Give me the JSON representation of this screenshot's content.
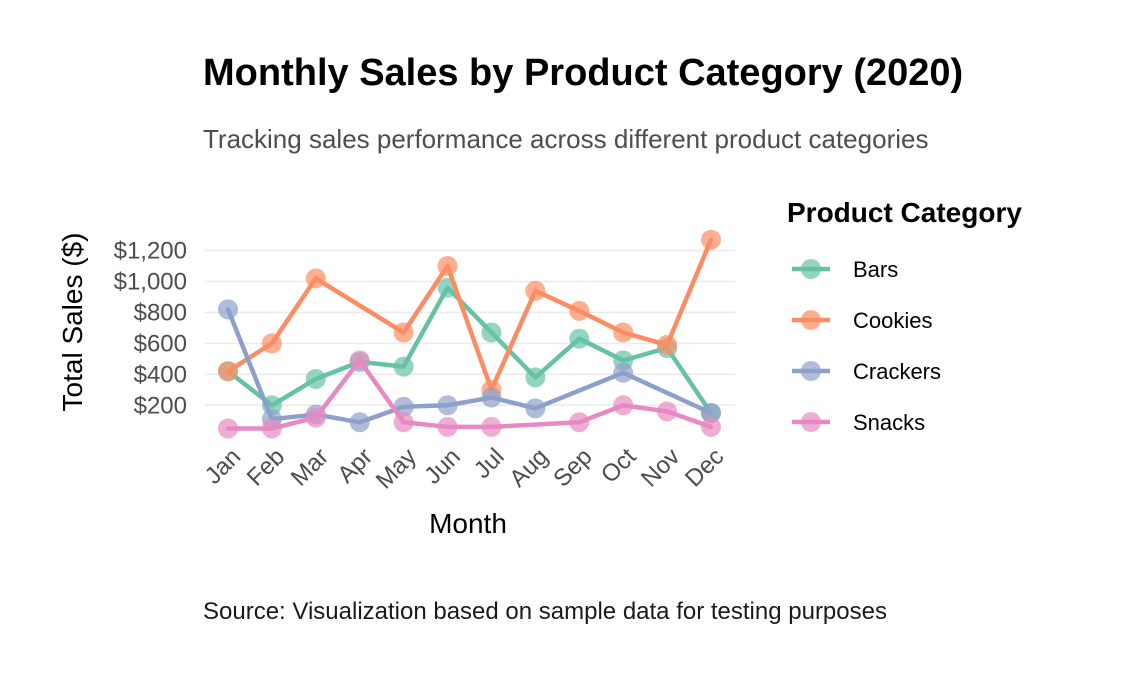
{
  "chart_data": {
    "type": "line",
    "title": "Monthly Sales by Product Category (2020)",
    "subtitle": "Tracking sales performance across different product categories",
    "caption": "Source: Visualization based on sample data for testing purposes",
    "xlabel": "Month",
    "ylabel": "Total Sales ($)",
    "categories": [
      "Jan",
      "Feb",
      "Mar",
      "Apr",
      "May",
      "Jun",
      "Jul",
      "Aug",
      "Sep",
      "Oct",
      "Nov",
      "Dec"
    ],
    "ylim": [
      40,
      1320
    ],
    "yticks": [
      200,
      400,
      600,
      800,
      1000,
      1200
    ],
    "ytick_labels": [
      "$200",
      "$400",
      "$600",
      "$800",
      "$1,000",
      "$1,200"
    ],
    "grid": true,
    "legend": {
      "title": "Product Category",
      "position": "right"
    },
    "series": [
      {
        "name": "Bars",
        "color": "#66c2a5",
        "values": [
          420,
          200,
          370,
          480,
          450,
          960,
          670,
          380,
          630,
          490,
          570,
          150
        ]
      },
      {
        "name": "Cookies",
        "color": "#fc8d62",
        "values": [
          420,
          600,
          1020,
          null,
          670,
          1100,
          300,
          940,
          810,
          670,
          590,
          1270
        ]
      },
      {
        "name": "Crackers",
        "color": "#8da0cb",
        "values": [
          820,
          110,
          140,
          90,
          190,
          200,
          250,
          180,
          null,
          410,
          null,
          150
        ]
      },
      {
        "name": "Snacks",
        "color": "#e78ac3",
        "values": [
          50,
          50,
          120,
          490,
          90,
          60,
          60,
          null,
          90,
          200,
          160,
          60
        ]
      }
    ]
  }
}
